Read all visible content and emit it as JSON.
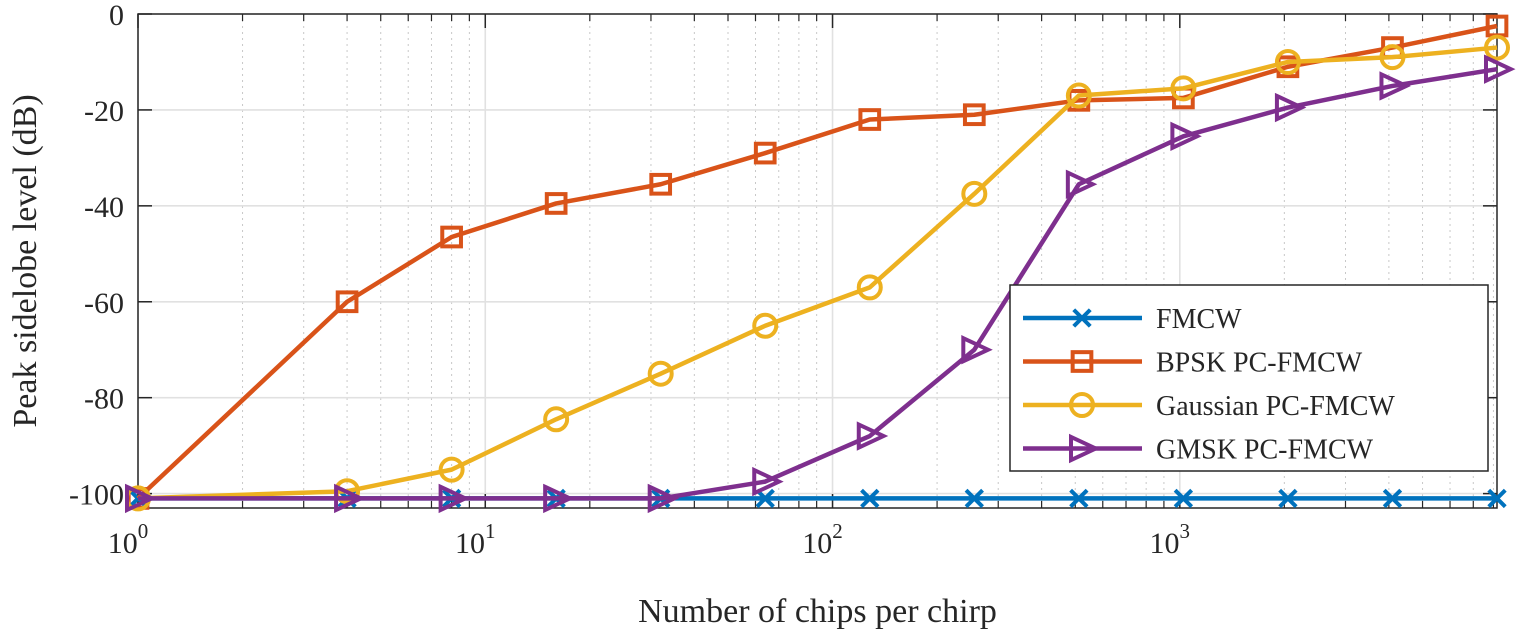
{
  "chart_data": {
    "type": "line",
    "xscale": "log",
    "xlim": [
      1,
      8192
    ],
    "ylim": [
      -103,
      0
    ],
    "grid": true,
    "xlabel": "Number of chips per chirp",
    "ylabel": "Peak sidelobe level (dB)",
    "yticks": [
      0,
      -20,
      -40,
      -60,
      -80,
      -100
    ],
    "ytick_labels": [
      "0",
      "-20",
      "-40",
      "-60",
      "-80",
      "-100"
    ],
    "xticks": [
      1,
      10,
      100,
      1000
    ],
    "xtick_labels": [
      {
        "base": "10",
        "exp": "0"
      },
      {
        "base": "10",
        "exp": "1"
      },
      {
        "base": "10",
        "exp": "2"
      },
      {
        "base": "10",
        "exp": "3"
      }
    ],
    "legend_position": "right",
    "x": [
      1,
      4,
      8,
      16,
      32,
      64,
      128,
      256,
      512,
      1024,
      2048,
      4096,
      8192
    ],
    "series": [
      {
        "name": "FMCW",
        "color": "#0072BD",
        "marker": "x",
        "values": [
          -101,
          -101,
          -101,
          -101,
          -101,
          -101,
          -101,
          -101,
          -101,
          -101,
          -101,
          -101,
          -101
        ]
      },
      {
        "name": "BPSK PC-FMCW",
        "color": "#D95319",
        "marker": "square",
        "values": [
          -101,
          -60,
          -46.5,
          -39.5,
          -35.5,
          -29,
          -22,
          -21,
          -18,
          -17.5,
          -11,
          -7,
          -2.5
        ]
      },
      {
        "name": "Gaussian PC-FMCW",
        "color": "#EDB120",
        "marker": "circle",
        "values": [
          -101,
          -99.5,
          -95,
          -84.5,
          -75,
          -65,
          -57,
          -37.5,
          -17,
          -15.5,
          -10,
          -9,
          -7
        ]
      },
      {
        "name": "GMSK PC-FMCW",
        "color": "#7E2F8E",
        "marker": "triangle-right",
        "values": [
          -101,
          -101,
          -101,
          -101,
          -101,
          -97.5,
          -88,
          -70,
          -35.5,
          -25.5,
          -19.5,
          -15,
          -11.5
        ]
      }
    ]
  }
}
